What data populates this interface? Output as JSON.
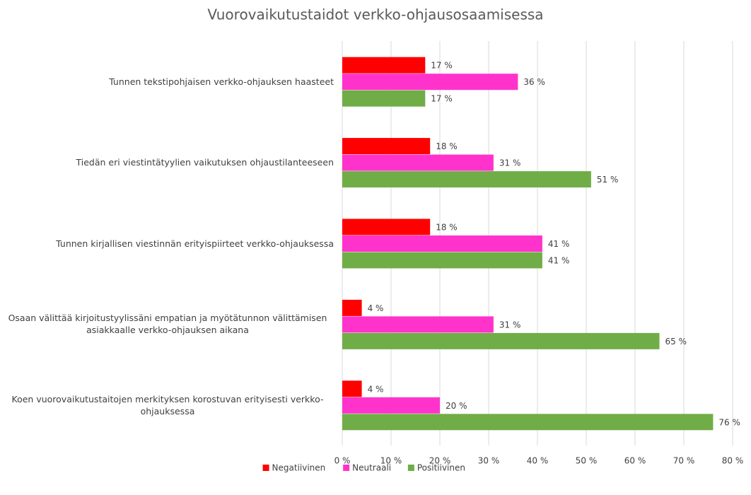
{
  "chart_data": {
    "type": "hbar",
    "title": "Vuorovaikutustaidot verkko-ohjausosaamisessa",
    "categories": [
      "Tunnen tekstipohjaisen verkko-ohjauksen haasteet",
      "Tiedän eri viestintätyylien vaikutuksen ohjaustilanteeseen",
      "Tunnen kirjallisen viestinnän erityispiirteet verkko-ohjauksessa",
      "Osaan välittää kirjoitustyylissäni empatian ja myötätunnon välittämisen asiakkaalle verkko-ohjauksen aikana",
      "Koen vuorovaikutustaitojen merkityksen korostuvan erityisesti verkko-ohjauksessa"
    ],
    "series": [
      {
        "name": "Negatiivinen",
        "color": "#ff0000",
        "values": [
          17,
          18,
          18,
          4,
          4
        ],
        "value_labels": [
          "17 %",
          "18 %",
          "18 %",
          "4 %",
          "4 %"
        ]
      },
      {
        "name": "Neutraali",
        "color": "#ff33cc",
        "values": [
          36,
          31,
          41,
          31,
          20
        ],
        "value_labels": [
          "36 %",
          "31 %",
          "41 %",
          "31 %",
          "20 %"
        ]
      },
      {
        "name": "Positiivinen",
        "color": "#70ad47",
        "values": [
          17,
          51,
          41,
          65,
          76
        ],
        "value_labels": [
          "17 %",
          "51 %",
          "41 %",
          "65 %",
          "76 %"
        ]
      }
    ],
    "xlim": [
      0,
      80
    ],
    "xticks": [
      {
        "value": 0,
        "label": "0 %"
      },
      {
        "value": 10,
        "label": "10 %"
      },
      {
        "value": 20,
        "label": "20 %"
      },
      {
        "value": 30,
        "label": "30 %"
      },
      {
        "value": 40,
        "label": "40 %"
      },
      {
        "value": 50,
        "label": "50 %"
      },
      {
        "value": 60,
        "label": "60 %"
      },
      {
        "value": 70,
        "label": "70 %"
      },
      {
        "value": 80,
        "label": "80 %"
      }
    ],
    "grid": true,
    "legend": "bottom"
  }
}
